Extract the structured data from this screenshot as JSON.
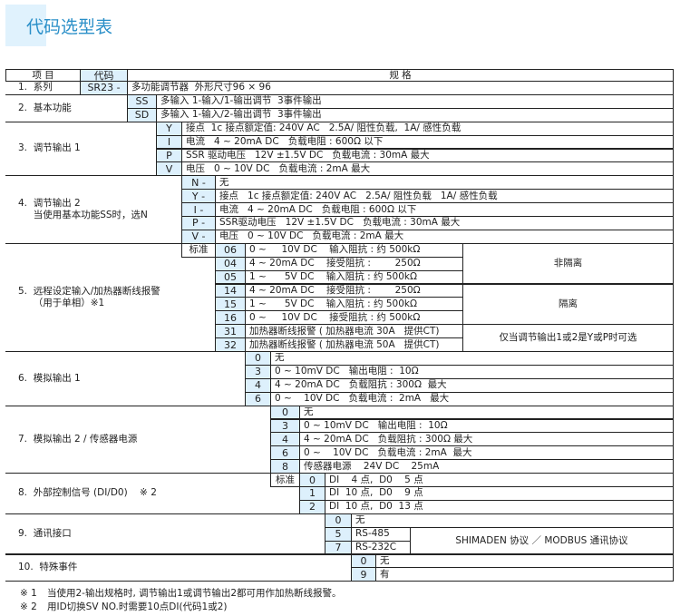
{
  "title": "代码选型表",
  "colors": {
    "accent": "#2a8fc8",
    "code_bg": "#ddf0fc",
    "title_bg": "#e0f2fd"
  },
  "header": {
    "item": "项 目",
    "code": "代码",
    "spec": "规 格"
  },
  "groups": [
    {
      "label": [
        "1.  系列"
      ],
      "options": [
        {
          "code": "SR23 -",
          "desc": "多功能调节器  外形尺寸96 × 96"
        }
      ]
    },
    {
      "label": [
        "2.  基本功能"
      ],
      "options": [
        {
          "code": "SS",
          "desc": "多输入 1-输入/1-输出调节  3事件输出"
        },
        {
          "code": "SD",
          "desc": "多输入 1-输入/2-输出调节  3事件输出"
        }
      ]
    },
    {
      "label": [
        "3.  调节输出 1"
      ],
      "options": [
        {
          "code": "Y",
          "desc": "接点  1c 接点额定值: 240V AC   2.5A/ 阻性负载,  1A/ 感性负载"
        },
        {
          "code": "I",
          "desc": "电流   4 ~ 20mA DC   负载电阻 : 600Ω 以下"
        },
        {
          "code": "P",
          "desc": "SSR 驱动电压   12V ±1.5V DC   负载电流 : 30mA 最大"
        },
        {
          "code": "V",
          "desc": "电压   0 ~ 10V DC   负载电流 : 2mA 最大"
        }
      ]
    },
    {
      "label": [
        "4.  调节输出 2",
        "     当使用基本功能SS时，选N"
      ],
      "options": [
        {
          "code": "N -",
          "desc": "无"
        },
        {
          "code": "Y -",
          "desc": "接点   1c 接点额定值: 240V AC   2.5A/ 阻性负载   1A/ 感性负载"
        },
        {
          "code": "I -",
          "desc": "电流   4 ~ 20mA DC   负载电阻 : 600Ω 以下"
        },
        {
          "code": "P -",
          "desc": "SSR驱动电压   12V ±1.5V DC   负载电流 : 30mA 最大"
        },
        {
          "code": "V -",
          "desc": "电压   0 ~ 10V DC   负载电流 : 2mA 最大"
        }
      ]
    },
    {
      "label": [
        "5.  远程设定输入/加热器断线报警",
        "     （用于单相）※1"
      ],
      "standard": "标准",
      "options": [
        {
          "code": "06",
          "desc": "0 ~     10V DC    输入阻抗 : 约 500kΩ"
        },
        {
          "code": "04",
          "desc": "4 ~ 20mA DC    接受阻抗 :        250Ω"
        },
        {
          "code": "05",
          "desc": "1 ~      5V DC    输入阻抗 : 约 500kΩ"
        },
        {
          "code": "14",
          "desc": "4 ~ 20mA DC    接受阻抗 :        250Ω"
        },
        {
          "code": "15",
          "desc": "1 ~      5V DC    输入阻抗 : 约 500kΩ"
        },
        {
          "code": "16",
          "desc": "0 ~     10V DC    接受阻抗 : 约 500kΩ"
        },
        {
          "code": "31",
          "desc": "加热器断线报警 ( 加热器电流 30A   提供CT)"
        },
        {
          "code": "32",
          "desc": "加热器断线报警 ( 加热器电流 50A   提供CT)"
        }
      ],
      "notes": [
        "非隔离",
        "隔离",
        "仅当调节输出1或2是Y或P时可选"
      ]
    },
    {
      "label": [
        "6.  模拟输出 1"
      ],
      "options": [
        {
          "code": "0",
          "desc": "无"
        },
        {
          "code": "3",
          "desc": "0 ~ 10mV DC   输出电阻 :  10Ω"
        },
        {
          "code": "4",
          "desc": "4 ~ 20mA DC   负载阻抗 : 300Ω  最大"
        },
        {
          "code": "6",
          "desc": "0 ~    10V DC   负载电流 :  2mA   最大"
        }
      ]
    },
    {
      "label": [
        "7.  模拟输出 2 / 传感器电源"
      ],
      "options": [
        {
          "code": "0",
          "desc": "无"
        },
        {
          "code": "3",
          "desc": "0 ~ 10mV DC   输出电阻 :  10Ω"
        },
        {
          "code": "4",
          "desc": "4 ~ 20mA DC   负载阻抗 : 300Ω 最大"
        },
        {
          "code": "6",
          "desc": "0 ~    10V DC   负载电流 : 2mA  最大"
        },
        {
          "code": "8",
          "desc": "传感器电源    24V DC    25mA"
        }
      ]
    },
    {
      "label": [
        "8.  外部控制信号 (DI/D0)    ※ 2"
      ],
      "standard": "标准",
      "options": [
        {
          "code": "0",
          "desc": "DI    4 点,  D0    5 点"
        },
        {
          "code": "1",
          "desc": "DI  10 点,  D0    9 点"
        },
        {
          "code": "2",
          "desc": "DI  10 点,  D0  13 点"
        }
      ]
    },
    {
      "label": [
        "9.  通讯接口"
      ],
      "options": [
        {
          "code": "0",
          "desc": "无"
        },
        {
          "code": "5",
          "desc": "RS-485"
        },
        {
          "code": "7",
          "desc": "RS-232C"
        }
      ],
      "notes": [
        "SHIMADEN 协议 ／ MODBUS 通讯协议"
      ]
    },
    {
      "label": [
        "10.  特殊事件"
      ],
      "options": [
        {
          "code": "0",
          "desc": "无"
        },
        {
          "code": "9",
          "desc": "有"
        }
      ]
    }
  ],
  "footnotes": [
    {
      "mark": "※ 1",
      "text": "当使用2-输出规格时, 调节输出1或调节输出2都可用作加热断线报警。"
    },
    {
      "mark": "※ 2",
      "text": "用ID切换SV NO.时需要10点DI(代码1或2)"
    }
  ]
}
